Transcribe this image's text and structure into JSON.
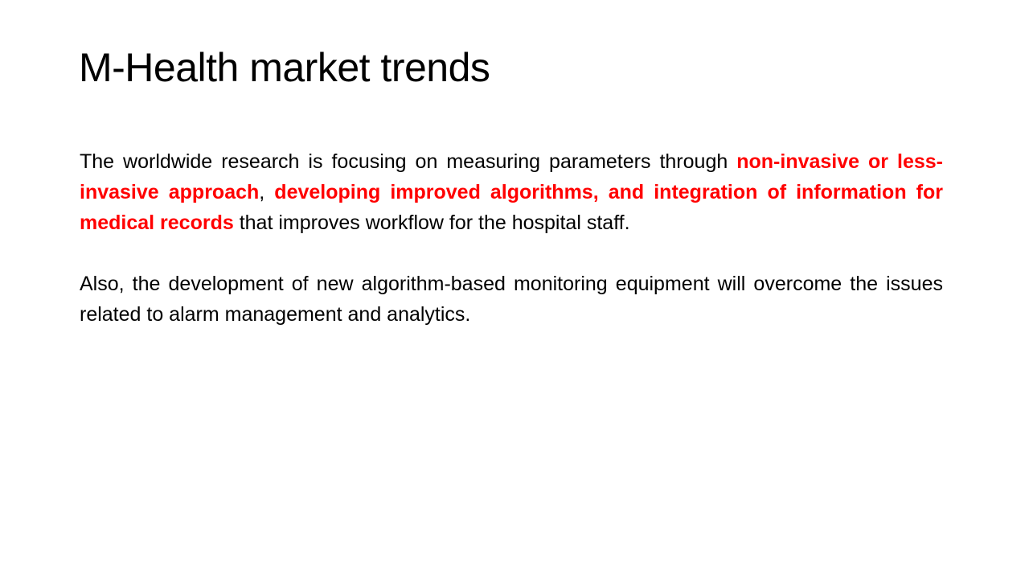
{
  "slide": {
    "title": "M-Health market trends",
    "paragraph1": {
      "part1": "The worldwide research is focusing on measuring parameters through ",
      "highlight1": "non-invasive or less-invasive approach",
      "part2": ", ",
      "highlight2": "developing improved algorithms, and integration of information for medical records",
      "part3": " that improves workflow for the hospital staff."
    },
    "paragraph2": {
      "text": "Also, the development of new algorithm-based monitoring equipment will overcome the issues related to alarm management and analytics."
    }
  },
  "colors": {
    "text": "#000000",
    "highlight": "#ff0000",
    "background": "#ffffff"
  }
}
